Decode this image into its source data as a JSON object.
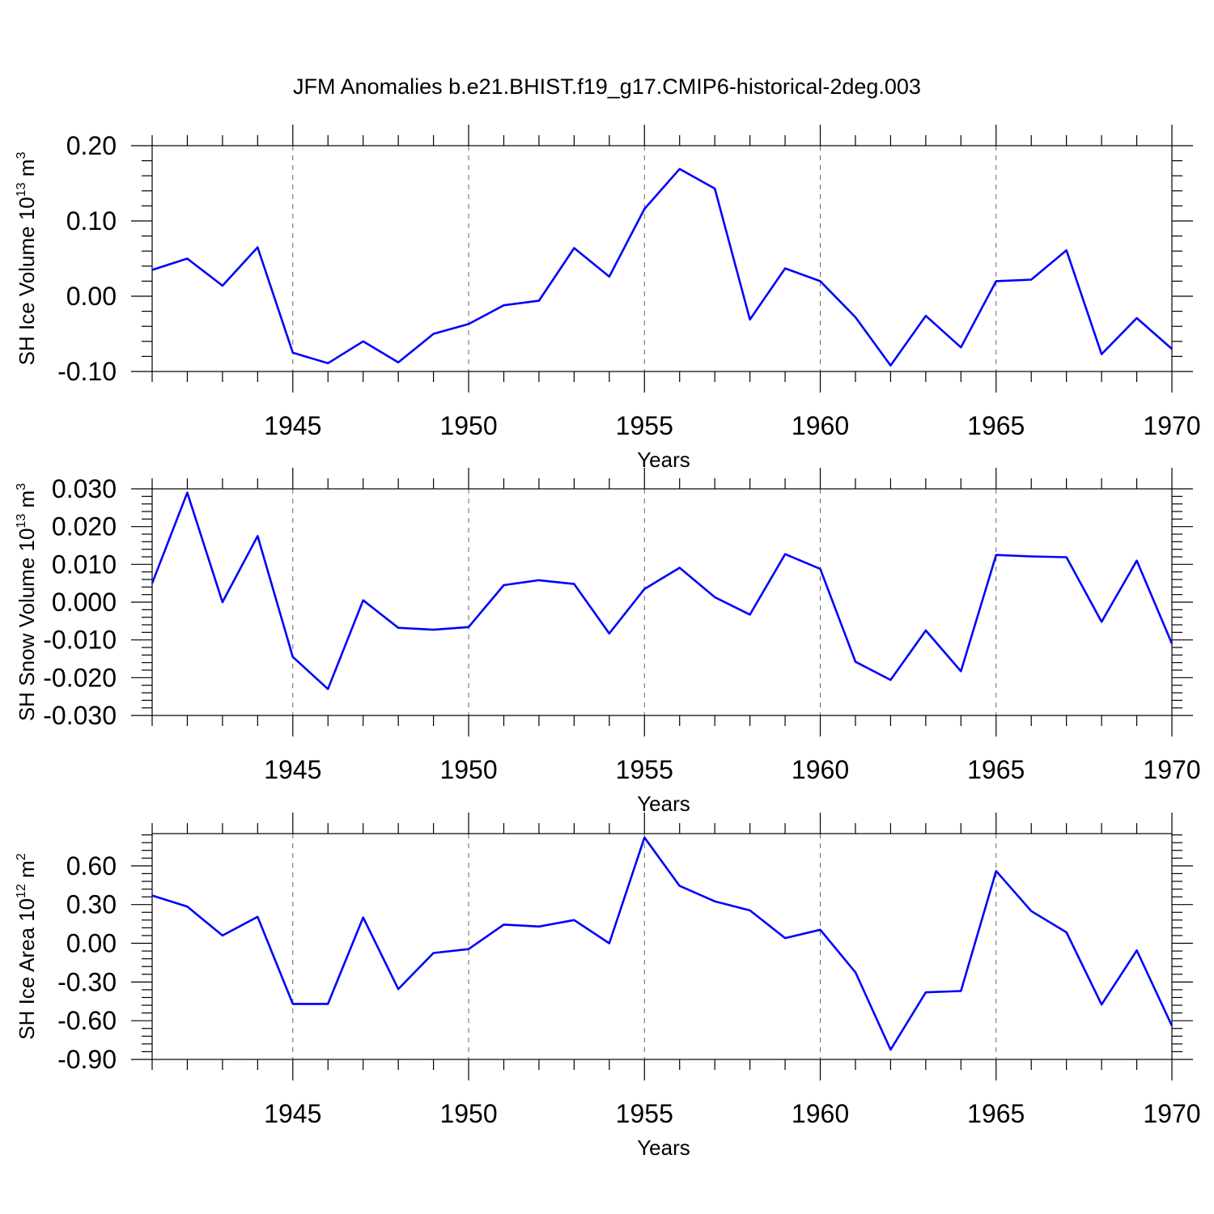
{
  "title": "JFM Anomalies b.e21.BHIST.f19_g17.CMIP6-historical-2deg.003",
  "line_color": "#0000ff",
  "chart_data": [
    {
      "type": "line",
      "ylabel": "SH Ice Volume 10",
      "ylabel_exp": "13",
      "ylabel_unit": " m",
      "ylabel_unit_exp": "3",
      "xlabel": "Years",
      "xlim": [
        1941,
        1970
      ],
      "ylim": [
        -0.1,
        0.2
      ],
      "y_ticks": [
        -0.1,
        0.0,
        0.1,
        0.2
      ],
      "y_tick_labels": [
        "-0.10",
        "0.00",
        "0.10",
        "0.20"
      ],
      "x_ticks": [
        1945,
        1950,
        1955,
        1960,
        1965,
        1970
      ],
      "x_tick_labels": [
        "1945",
        "1950",
        "1955",
        "1960",
        "1965",
        "1970"
      ],
      "grid": "dashed vertical at major x ticks",
      "x": [
        1941,
        1942,
        1943,
        1944,
        1945,
        1946,
        1947,
        1948,
        1949,
        1950,
        1951,
        1952,
        1953,
        1954,
        1955,
        1956,
        1957,
        1958,
        1959,
        1960,
        1961,
        1962,
        1963,
        1964,
        1965,
        1966,
        1967,
        1968,
        1969,
        1970
      ],
      "series": [
        {
          "values": [
            0.035,
            0.05,
            0.014,
            0.065,
            -0.075,
            -0.089,
            -0.06,
            -0.088,
            -0.05,
            -0.037,
            -0.012,
            -0.006,
            0.064,
            0.026,
            0.116,
            0.169,
            0.143,
            -0.031,
            0.037,
            0.02,
            -0.028,
            -0.092,
            -0.026,
            -0.068,
            0.02,
            0.022,
            0.061,
            -0.077,
            -0.029,
            -0.07
          ]
        }
      ]
    },
    {
      "type": "line",
      "ylabel": "SH Snow Volume 10",
      "ylabel_exp": "13",
      "ylabel_unit": " m",
      "ylabel_unit_exp": "3",
      "xlabel": "Years",
      "xlim": [
        1941,
        1970
      ],
      "ylim": [
        -0.03,
        0.03
      ],
      "y_ticks": [
        -0.03,
        -0.02,
        -0.01,
        0.0,
        0.01,
        0.02,
        0.03
      ],
      "y_tick_labels": [
        "-0.030",
        "-0.020",
        "-0.010",
        "0.000",
        "0.010",
        "0.020",
        "0.030"
      ],
      "x_ticks": [
        1945,
        1950,
        1955,
        1960,
        1965,
        1970
      ],
      "x_tick_labels": [
        "1945",
        "1950",
        "1955",
        "1960",
        "1965",
        "1970"
      ],
      "grid": "dashed vertical at major x ticks",
      "x": [
        1941,
        1942,
        1943,
        1944,
        1945,
        1946,
        1947,
        1948,
        1949,
        1950,
        1951,
        1952,
        1953,
        1954,
        1955,
        1956,
        1957,
        1958,
        1959,
        1960,
        1961,
        1962,
        1963,
        1964,
        1965,
        1966,
        1967,
        1968,
        1969,
        1970
      ],
      "series": [
        {
          "values": [
            0.005,
            0.029,
            0.0,
            0.0175,
            -0.0145,
            -0.023,
            0.0005,
            -0.0068,
            -0.0073,
            -0.0066,
            0.0045,
            0.0058,
            0.0048,
            -0.0083,
            0.0035,
            0.0091,
            0.0013,
            -0.0033,
            0.0127,
            0.0088,
            -0.0158,
            -0.0206,
            -0.0075,
            -0.0183,
            0.0125,
            0.0121,
            0.0119,
            -0.0052,
            0.011,
            -0.011
          ]
        }
      ]
    },
    {
      "type": "line",
      "ylabel": "SH Ice Area 10",
      "ylabel_exp": "12",
      "ylabel_unit": " m",
      "ylabel_unit_exp": "2",
      "xlabel": "Years",
      "xlim": [
        1941,
        1970
      ],
      "ylim": [
        -0.9,
        0.85
      ],
      "y_ticks": [
        -0.9,
        -0.6,
        -0.3,
        0.0,
        0.3,
        0.6
      ],
      "y_tick_labels": [
        "-0.90",
        "-0.60",
        "-0.30",
        "0.00",
        "0.30",
        "0.60"
      ],
      "x_ticks": [
        1945,
        1950,
        1955,
        1960,
        1965,
        1970
      ],
      "x_tick_labels": [
        "1945",
        "1950",
        "1955",
        "1960",
        "1965",
        "1970"
      ],
      "grid": "dashed vertical at major x ticks",
      "x": [
        1941,
        1942,
        1943,
        1944,
        1945,
        1946,
        1947,
        1948,
        1949,
        1950,
        1951,
        1952,
        1953,
        1954,
        1955,
        1956,
        1957,
        1958,
        1959,
        1960,
        1961,
        1962,
        1963,
        1964,
        1965,
        1966,
        1967,
        1968,
        1969,
        1970
      ],
      "series": [
        {
          "values": [
            0.37,
            0.285,
            0.06,
            0.205,
            -0.47,
            -0.47,
            0.2,
            -0.355,
            -0.075,
            -0.045,
            0.145,
            0.13,
            0.18,
            0.0,
            0.82,
            0.445,
            0.325,
            0.255,
            0.04,
            0.105,
            -0.225,
            -0.825,
            -0.38,
            -0.37,
            0.56,
            0.25,
            0.085,
            -0.475,
            -0.055,
            -0.64
          ]
        }
      ]
    }
  ]
}
